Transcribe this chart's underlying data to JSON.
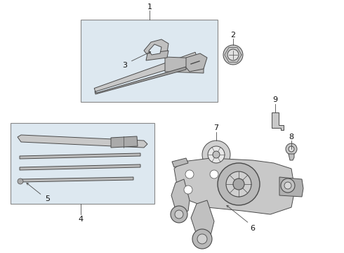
{
  "bg_color": "#ffffff",
  "fig_bg": "#ffffff",
  "line_color": "#4a4a4a",
  "box_bg": "#dde8f0",
  "box_edge": "#888888",
  "label_color": "#111111",
  "fs": 7.5,
  "lw": 0.7
}
